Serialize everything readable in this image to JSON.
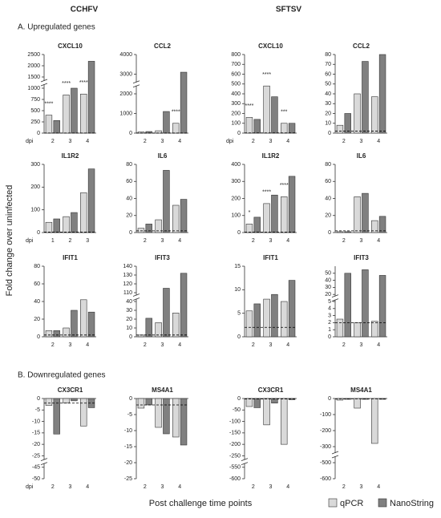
{
  "column_labels": [
    "CCHFV",
    "SFTSV"
  ],
  "sections": [
    "A. Upregulated genes",
    "B. Downregulated genes"
  ],
  "y_label": "Fold change over uninfected",
  "x_label": "Post challenge time points",
  "dpi_label": "dpi",
  "chart_data": [
    {
      "type": "bar",
      "title": "CXCL10",
      "categories": [
        "2",
        "3",
        "4"
      ],
      "series": [
        {
          "name": "qPCR",
          "color": "#d9d9d9",
          "values": [
            400,
            850,
            870
          ]
        },
        {
          "name": "NanoString",
          "color": "#808080",
          "values": [
            280,
            1000,
            2200
          ]
        }
      ],
      "ylim": [
        0,
        2500
      ],
      "yticks": [
        0,
        250,
        500,
        750,
        1000,
        1500,
        2000,
        2500
      ],
      "ybreak": [
        1000,
        1500
      ],
      "hline": 2,
      "annotations": [
        {
          "x": "2",
          "text": "****"
        },
        {
          "x": "3",
          "text": "****"
        },
        {
          "x": "4",
          "text": "****"
        }
      ]
    },
    {
      "type": "bar",
      "title": "CCL2",
      "categories": [
        "2",
        "3",
        "4"
      ],
      "series": [
        {
          "name": "qPCR",
          "color": "#d9d9d9",
          "values": [
            60,
            120,
            500
          ]
        },
        {
          "name": "NanoString",
          "color": "#808080",
          "values": [
            80,
            1100,
            3100
          ]
        }
      ],
      "ylim": [
        0,
        4000
      ],
      "yticks": [
        0,
        1000,
        2000,
        3000,
        4000
      ],
      "ybreak": [
        2000,
        3000
      ],
      "hline": 2,
      "annotations": [
        {
          "x": "4",
          "text": "****"
        }
      ]
    },
    {
      "type": "bar",
      "title": "CXCL10",
      "categories": [
        "2",
        "3",
        "4"
      ],
      "series": [
        {
          "name": "qPCR",
          "color": "#d9d9d9",
          "values": [
            160,
            480,
            100
          ]
        },
        {
          "name": "NanoString",
          "color": "#808080",
          "values": [
            140,
            370,
            100
          ]
        }
      ],
      "ylim": [
        0,
        800
      ],
      "yticks": [
        0,
        100,
        200,
        300,
        400,
        500,
        600,
        700,
        800
      ],
      "hline": 2,
      "annotations": [
        {
          "x": "2",
          "text": "****"
        },
        {
          "x": "3",
          "text": "****"
        },
        {
          "x": "4",
          "text": "***"
        }
      ]
    },
    {
      "type": "bar",
      "title": "CCL2",
      "categories": [
        "2",
        "3",
        "4"
      ],
      "series": [
        {
          "name": "qPCR",
          "color": "#d9d9d9",
          "values": [
            8,
            40,
            37
          ]
        },
        {
          "name": "NanoString",
          "color": "#808080",
          "values": [
            20,
            73,
            80
          ]
        }
      ],
      "ylim": [
        0,
        80
      ],
      "yticks": [
        0,
        10,
        20,
        30,
        40,
        50,
        60,
        70,
        80
      ],
      "hline": 2
    },
    {
      "type": "bar",
      "title": "IL1R2",
      "categories": [
        "1",
        "2",
        "3"
      ],
      "series": [
        {
          "name": "qPCR",
          "color": "#d9d9d9",
          "values": [
            45,
            70,
            175
          ]
        },
        {
          "name": "NanoString",
          "color": "#808080",
          "values": [
            60,
            88,
            280
          ]
        }
      ],
      "ylim": [
        0,
        300
      ],
      "yticks": [
        0,
        100,
        200,
        300
      ],
      "hline": 2
    },
    {
      "type": "bar",
      "title": "IL6",
      "categories": [
        "2",
        "3",
        "4"
      ],
      "series": [
        {
          "name": "qPCR",
          "color": "#d9d9d9",
          "values": [
            5,
            15,
            32
          ]
        },
        {
          "name": "NanoString",
          "color": "#808080",
          "values": [
            10,
            73,
            39
          ]
        }
      ],
      "ylim": [
        0,
        80
      ],
      "yticks": [
        0,
        20,
        40,
        60,
        80
      ],
      "hline": 2
    },
    {
      "type": "bar",
      "title": "IL1R2",
      "categories": [
        "2",
        "3",
        "4"
      ],
      "series": [
        {
          "name": "qPCR",
          "color": "#d9d9d9",
          "values": [
            50,
            170,
            210
          ]
        },
        {
          "name": "NanoString",
          "color": "#808080",
          "values": [
            90,
            220,
            330
          ]
        }
      ],
      "ylim": [
        0,
        400
      ],
      "yticks": [
        0,
        100,
        200,
        300,
        400
      ],
      "hline": 2,
      "annotations": [
        {
          "x": "2",
          "text": "*"
        },
        {
          "x": "3",
          "text": "****"
        },
        {
          "x": "4",
          "text": "****"
        }
      ]
    },
    {
      "type": "bar",
      "title": "IL6",
      "categories": [
        "2",
        "3",
        "4"
      ],
      "series": [
        {
          "name": "qPCR",
          "color": "#d9d9d9",
          "values": [
            1,
            42,
            14
          ]
        },
        {
          "name": "NanoString",
          "color": "#808080",
          "values": [
            1,
            46,
            19
          ]
        }
      ],
      "ylim": [
        0,
        80
      ],
      "yticks": [
        0,
        20,
        40,
        60,
        80
      ],
      "hline": 2
    },
    {
      "type": "bar",
      "title": "IFIT1",
      "categories": [
        "2",
        "3",
        "4"
      ],
      "series": [
        {
          "name": "qPCR",
          "color": "#d9d9d9",
          "values": [
            7,
            10,
            42
          ]
        },
        {
          "name": "NanoString",
          "color": "#808080",
          "values": [
            7,
            30,
            28
          ]
        }
      ],
      "ylim": [
        0,
        80
      ],
      "yticks": [
        0,
        20,
        40,
        60,
        80
      ],
      "hline": 2
    },
    {
      "type": "bar",
      "title": "IFIT3",
      "categories": [
        "2",
        "3",
        "4"
      ],
      "series": [
        {
          "name": "qPCR",
          "color": "#d9d9d9",
          "values": [
            2,
            16,
            27
          ]
        },
        {
          "name": "NanoString",
          "color": "#808080",
          "values": [
            21,
            115,
            132
          ]
        }
      ],
      "ylim": [
        0,
        140
      ],
      "yticks": [
        0,
        10,
        20,
        30,
        40,
        110,
        120,
        130,
        140
      ],
      "ybreak": [
        40,
        110
      ],
      "hline": 2
    },
    {
      "type": "bar",
      "title": "IFIT1",
      "categories": [
        "2",
        "3",
        "4"
      ],
      "series": [
        {
          "name": "qPCR",
          "color": "#d9d9d9",
          "values": [
            5.5,
            8,
            7.5
          ]
        },
        {
          "name": "NanoString",
          "color": "#808080",
          "values": [
            7,
            9,
            12
          ]
        }
      ],
      "ylim": [
        0,
        15
      ],
      "yticks": [
        0,
        5,
        10,
        15
      ],
      "hline": 2
    },
    {
      "type": "bar",
      "title": "IFIT3",
      "categories": [
        "2",
        "3",
        "4"
      ],
      "series": [
        {
          "name": "qPCR",
          "color": "#d9d9d9",
          "values": [
            2.5,
            2,
            2.2
          ]
        },
        {
          "name": "NanoString",
          "color": "#808080",
          "values": [
            50,
            55,
            47
          ]
        }
      ],
      "ylim": [
        0,
        60
      ],
      "yticks": [
        0,
        1,
        2,
        3,
        4,
        5,
        20,
        30,
        40,
        50
      ],
      "ybreak": [
        5,
        20
      ],
      "hline": 2
    },
    {
      "type": "bar",
      "title": "CX3CR1",
      "categories": [
        "2",
        "3",
        "4"
      ],
      "series": [
        {
          "name": "qPCR",
          "color": "#d9d9d9",
          "values": [
            -3,
            -2,
            -12
          ]
        },
        {
          "name": "NanoString",
          "color": "#808080",
          "values": [
            -15.5,
            -1,
            -4
          ]
        }
      ],
      "ylim": [
        -50,
        0
      ],
      "yticks": [
        -50,
        -45,
        -25,
        -20,
        -15,
        -10,
        -5,
        0
      ],
      "ybreak": [
        -45,
        -25
      ],
      "hline": -2
    },
    {
      "type": "bar",
      "title": "MS4A1",
      "categories": [
        "2",
        "3",
        "4"
      ],
      "series": [
        {
          "name": "qPCR",
          "color": "#d9d9d9",
          "values": [
            -3,
            -9,
            -12
          ]
        },
        {
          "name": "NanoString",
          "color": "#808080",
          "values": [
            -2,
            -11,
            -14.5
          ]
        }
      ],
      "ylim": [
        -25,
        0
      ],
      "yticks": [
        -25,
        -20,
        -15,
        -10,
        -5,
        0
      ],
      "hline": -2
    },
    {
      "type": "bar",
      "title": "CX3CR1",
      "categories": [
        "2",
        "3",
        "4"
      ],
      "series": [
        {
          "name": "qPCR",
          "color": "#d9d9d9",
          "values": [
            -35,
            -115,
            -200
          ]
        },
        {
          "name": "NanoString",
          "color": "#808080",
          "values": [
            -40,
            -20,
            -5
          ]
        }
      ],
      "ylim": [
        -600,
        0
      ],
      "yticks": [
        -600,
        -550,
        -250,
        -200,
        -150,
        -100,
        -50,
        0
      ],
      "ybreak": [
        -550,
        -250
      ],
      "hline": -2
    },
    {
      "type": "bar",
      "title": "MS4A1",
      "categories": [
        "2",
        "3",
        "4"
      ],
      "series": [
        {
          "name": "qPCR",
          "color": "#d9d9d9",
          "values": [
            -10,
            -60,
            -280
          ]
        },
        {
          "name": "NanoString",
          "color": "#808080",
          "values": [
            -5,
            -5,
            -5
          ]
        }
      ],
      "ylim": [
        -600,
        0
      ],
      "yticks": [
        -600,
        -500,
        -300,
        -200,
        -100,
        0
      ],
      "ybreak": [
        -500,
        -300
      ],
      "hline": -2
    }
  ]
}
